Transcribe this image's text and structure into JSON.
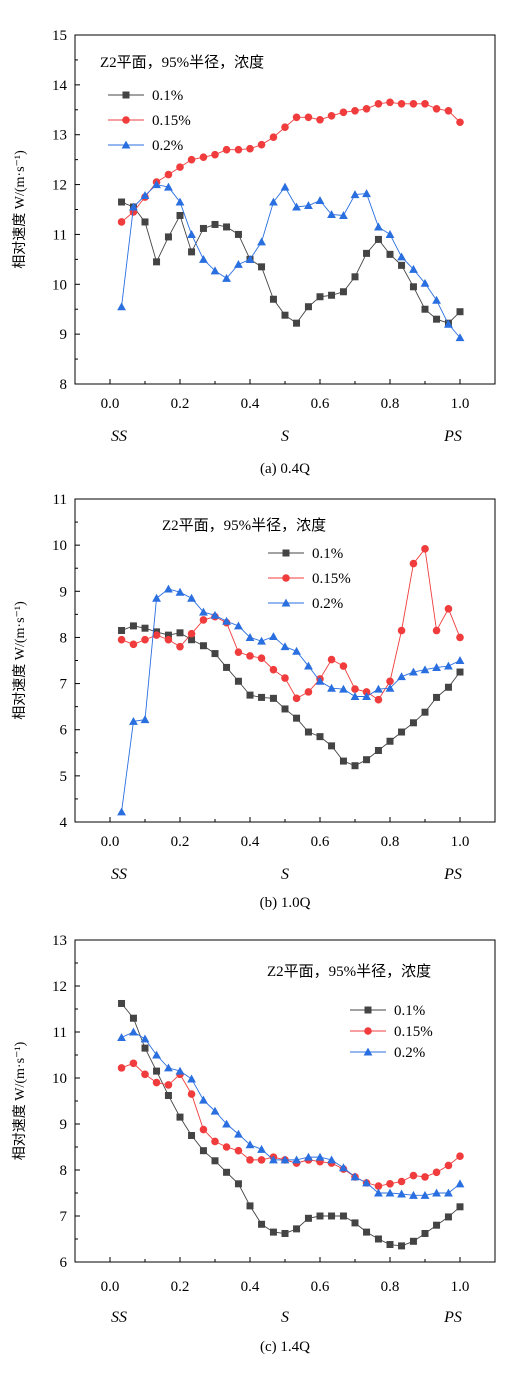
{
  "chart_data": [
    {
      "type": "line",
      "caption": "(a) 0.4Q",
      "annotation": "Z2平面，95%半径，浓度",
      "ylabel": "相对速度 W/(m·s⁻¹)",
      "xlabel": "",
      "x_markers": [
        "SS",
        "S",
        "PS"
      ],
      "xlim": [
        -0.1,
        1.1
      ],
      "ylim": [
        8,
        15
      ],
      "x_ticks": [
        "0.0",
        "0.2",
        "0.4",
        "0.6",
        "0.8",
        "1.0"
      ],
      "y_ticks": [
        "8",
        "9",
        "10",
        "11",
        "12",
        "13",
        "14",
        "15"
      ],
      "legend_position": "top-left",
      "series": [
        {
          "name": "0.1%",
          "color": "#444444",
          "marker": "square",
          "x": [
            0.033,
            0.067,
            0.1,
            0.133,
            0.167,
            0.2,
            0.233,
            0.267,
            0.3,
            0.333,
            0.367,
            0.4,
            0.433,
            0.467,
            0.5,
            0.533,
            0.567,
            0.6,
            0.633,
            0.667,
            0.7,
            0.733,
            0.767,
            0.8,
            0.833,
            0.867,
            0.9,
            0.933,
            0.967,
            1.0
          ],
          "values": [
            11.65,
            11.55,
            11.25,
            10.45,
            10.95,
            11.38,
            10.65,
            11.12,
            11.2,
            11.15,
            11.0,
            10.5,
            10.35,
            9.7,
            9.38,
            9.22,
            9.55,
            9.75,
            9.78,
            9.85,
            10.15,
            10.62,
            10.9,
            10.6,
            10.38,
            9.95,
            9.5,
            9.3,
            9.22,
            9.45
          ]
        },
        {
          "name": "0.15%",
          "color": "#f03c3c",
          "marker": "circle",
          "x": [
            0.033,
            0.067,
            0.1,
            0.133,
            0.167,
            0.2,
            0.233,
            0.267,
            0.3,
            0.333,
            0.367,
            0.4,
            0.433,
            0.467,
            0.5,
            0.533,
            0.567,
            0.6,
            0.633,
            0.667,
            0.7,
            0.733,
            0.767,
            0.8,
            0.833,
            0.867,
            0.9,
            0.933,
            0.967,
            1.0
          ],
          "values": [
            11.25,
            11.45,
            11.75,
            12.05,
            12.2,
            12.35,
            12.5,
            12.55,
            12.6,
            12.7,
            12.7,
            12.72,
            12.8,
            12.95,
            13.15,
            13.35,
            13.35,
            13.3,
            13.38,
            13.45,
            13.48,
            13.52,
            13.62,
            13.65,
            13.62,
            13.62,
            13.62,
            13.52,
            13.48,
            13.25
          ]
        },
        {
          "name": "0.2%",
          "color": "#2a6fe0",
          "marker": "triangle",
          "x": [
            0.033,
            0.067,
            0.1,
            0.133,
            0.167,
            0.2,
            0.233,
            0.267,
            0.3,
            0.333,
            0.367,
            0.4,
            0.433,
            0.467,
            0.5,
            0.533,
            0.567,
            0.6,
            0.633,
            0.667,
            0.7,
            0.733,
            0.767,
            0.8,
            0.833,
            0.867,
            0.9,
            0.933,
            0.967,
            1.0
          ],
          "values": [
            9.55,
            11.55,
            11.78,
            12.0,
            11.95,
            11.65,
            11.0,
            10.5,
            10.27,
            10.12,
            10.4,
            10.5,
            10.85,
            11.65,
            11.95,
            11.55,
            11.58,
            11.68,
            11.4,
            11.38,
            11.8,
            11.82,
            11.15,
            11.0,
            10.55,
            10.3,
            10.02,
            9.68,
            9.2,
            8.93
          ]
        }
      ]
    },
    {
      "type": "line",
      "caption": "(b) 1.0Q",
      "annotation": "Z2平面，95%半径，浓度",
      "ylabel": "相对速度 W/(m·s⁻¹)",
      "xlabel": "",
      "x_markers": [
        "SS",
        "S",
        "PS"
      ],
      "xlim": [
        -0.1,
        1.1
      ],
      "ylim": [
        4,
        11
      ],
      "x_ticks": [
        "0.0",
        "0.2",
        "0.4",
        "0.6",
        "0.8",
        "1.0"
      ],
      "y_ticks": [
        "4",
        "5",
        "6",
        "7",
        "8",
        "9",
        "10",
        "11"
      ],
      "legend_position": "top-center",
      "series": [
        {
          "name": "0.1%",
          "color": "#444444",
          "marker": "square",
          "x": [
            0.033,
            0.067,
            0.1,
            0.133,
            0.167,
            0.2,
            0.233,
            0.267,
            0.3,
            0.333,
            0.367,
            0.4,
            0.433,
            0.467,
            0.5,
            0.533,
            0.567,
            0.6,
            0.633,
            0.667,
            0.7,
            0.733,
            0.767,
            0.8,
            0.833,
            0.867,
            0.9,
            0.933,
            0.967,
            1.0
          ],
          "values": [
            8.15,
            8.25,
            8.2,
            8.12,
            8.05,
            8.1,
            7.95,
            7.82,
            7.65,
            7.35,
            7.05,
            6.75,
            6.7,
            6.68,
            6.45,
            6.25,
            5.95,
            5.85,
            5.65,
            5.32,
            5.22,
            5.35,
            5.55,
            5.75,
            5.95,
            6.15,
            6.38,
            6.7,
            6.92,
            7.25
          ]
        },
        {
          "name": "0.15%",
          "color": "#f03c3c",
          "marker": "circle",
          "x": [
            0.033,
            0.067,
            0.1,
            0.133,
            0.167,
            0.2,
            0.233,
            0.267,
            0.3,
            0.333,
            0.367,
            0.4,
            0.433,
            0.467,
            0.5,
            0.533,
            0.567,
            0.6,
            0.633,
            0.667,
            0.7,
            0.733,
            0.767,
            0.8,
            0.833,
            0.867,
            0.9,
            0.933,
            0.967,
            1.0
          ],
          "values": [
            7.95,
            7.85,
            7.95,
            8.05,
            7.95,
            7.8,
            8.08,
            8.38,
            8.45,
            8.32,
            7.68,
            7.6,
            7.55,
            7.3,
            7.12,
            6.68,
            6.82,
            7.1,
            7.52,
            7.38,
            6.88,
            6.82,
            6.65,
            7.05,
            8.15,
            9.6,
            9.92,
            8.15,
            8.62,
            8.0
          ]
        },
        {
          "name": "0.2%",
          "color": "#2a6fe0",
          "marker": "triangle",
          "x": [
            0.033,
            0.067,
            0.1,
            0.133,
            0.167,
            0.2,
            0.233,
            0.267,
            0.3,
            0.333,
            0.367,
            0.4,
            0.433,
            0.467,
            0.5,
            0.533,
            0.567,
            0.6,
            0.633,
            0.667,
            0.7,
            0.733,
            0.767,
            0.8,
            0.833,
            0.867,
            0.9,
            0.933,
            0.967,
            1.0
          ],
          "values": [
            4.22,
            6.18,
            6.22,
            8.85,
            9.05,
            8.98,
            8.85,
            8.55,
            8.48,
            8.35,
            8.25,
            8.0,
            7.92,
            8.02,
            7.8,
            7.7,
            7.38,
            7.05,
            6.9,
            6.88,
            6.72,
            6.72,
            6.88,
            6.9,
            7.15,
            7.25,
            7.3,
            7.35,
            7.38,
            7.5
          ]
        }
      ]
    },
    {
      "type": "line",
      "caption": "(c) 1.4Q",
      "annotation": "Z2平面，95%半径，浓度",
      "ylabel": "相对速度 W/(m·s⁻¹)",
      "xlabel": "",
      "x_markers": [
        "SS",
        "S",
        "PS"
      ],
      "xlim": [
        -0.1,
        1.1
      ],
      "ylim": [
        6,
        13
      ],
      "x_ticks": [
        "0.0",
        "0.2",
        "0.4",
        "0.6",
        "0.8",
        "1.0"
      ],
      "y_ticks": [
        "6",
        "7",
        "8",
        "9",
        "10",
        "11",
        "12",
        "13"
      ],
      "legend_position": "top-right",
      "series": [
        {
          "name": "0.1%",
          "color": "#444444",
          "marker": "square",
          "x": [
            0.033,
            0.067,
            0.1,
            0.133,
            0.167,
            0.2,
            0.233,
            0.267,
            0.3,
            0.333,
            0.367,
            0.4,
            0.433,
            0.467,
            0.5,
            0.533,
            0.567,
            0.6,
            0.633,
            0.667,
            0.7,
            0.733,
            0.767,
            0.8,
            0.833,
            0.867,
            0.9,
            0.933,
            0.967,
            1.0
          ],
          "values": [
            11.62,
            11.3,
            10.65,
            10.15,
            9.62,
            9.15,
            8.75,
            8.42,
            8.2,
            7.95,
            7.7,
            7.22,
            6.82,
            6.65,
            6.62,
            6.72,
            6.95,
            7.0,
            7.0,
            7.0,
            6.85,
            6.65,
            6.5,
            6.38,
            6.35,
            6.45,
            6.62,
            6.8,
            6.98,
            7.2
          ]
        },
        {
          "name": "0.15%",
          "color": "#f03c3c",
          "marker": "circle",
          "x": [
            0.033,
            0.067,
            0.1,
            0.133,
            0.167,
            0.2,
            0.233,
            0.267,
            0.3,
            0.333,
            0.367,
            0.4,
            0.433,
            0.467,
            0.5,
            0.533,
            0.567,
            0.6,
            0.633,
            0.667,
            0.7,
            0.733,
            0.767,
            0.8,
            0.833,
            0.867,
            0.9,
            0.933,
            0.967,
            1.0
          ],
          "values": [
            10.22,
            10.32,
            10.08,
            9.9,
            9.85,
            10.08,
            9.65,
            8.88,
            8.62,
            8.5,
            8.42,
            8.22,
            8.22,
            8.28,
            8.22,
            8.15,
            8.22,
            8.18,
            8.15,
            8.02,
            7.85,
            7.72,
            7.65,
            7.7,
            7.75,
            7.88,
            7.85,
            7.95,
            8.1,
            8.3
          ]
        },
        {
          "name": "0.2%",
          "color": "#2a6fe0",
          "marker": "triangle",
          "x": [
            0.033,
            0.067,
            0.1,
            0.133,
            0.167,
            0.2,
            0.233,
            0.267,
            0.3,
            0.333,
            0.367,
            0.4,
            0.433,
            0.467,
            0.5,
            0.533,
            0.567,
            0.6,
            0.633,
            0.667,
            0.7,
            0.733,
            0.767,
            0.8,
            0.833,
            0.867,
            0.9,
            0.933,
            0.967,
            1.0
          ],
          "values": [
            10.88,
            11.0,
            10.85,
            10.5,
            10.22,
            10.15,
            9.98,
            9.52,
            9.28,
            9.0,
            8.78,
            8.55,
            8.45,
            8.22,
            8.22,
            8.22,
            8.28,
            8.28,
            8.22,
            8.05,
            7.85,
            7.72,
            7.5,
            7.5,
            7.48,
            7.45,
            7.45,
            7.5,
            7.5,
            7.7
          ]
        }
      ]
    }
  ]
}
